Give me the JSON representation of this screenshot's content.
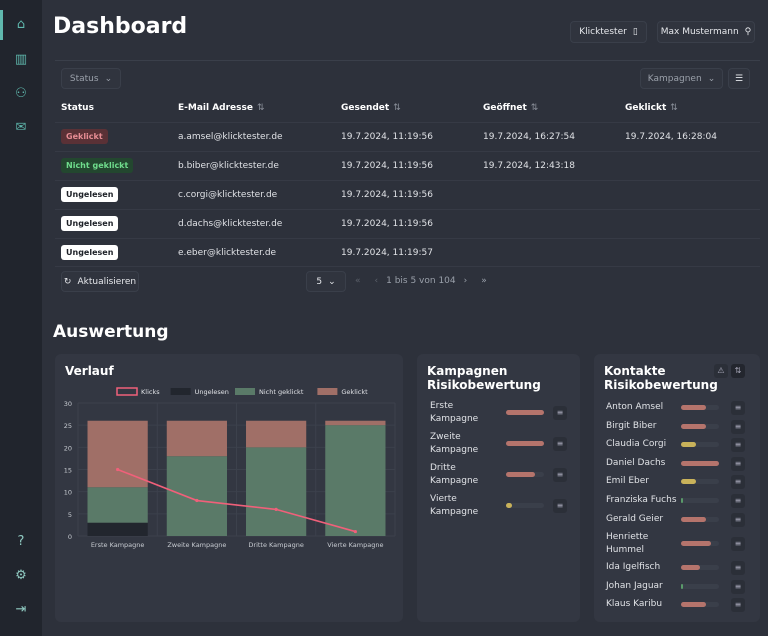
{
  "header": {
    "title": "Dashboard",
    "org_button": "Klicktester",
    "user_button": "Max Mustermann"
  },
  "sidebar": {
    "items": [
      "home-icon",
      "building-icon",
      "users-icon",
      "mail-icon"
    ],
    "bottom": [
      "help-icon",
      "settings-icon",
      "logout-icon"
    ]
  },
  "table": {
    "status_filter": "Status",
    "campaign_filter": "Kampagnen",
    "columns": [
      "Status",
      "E-Mail Adresse",
      "Gesendet",
      "Geöffnet",
      "Geklickt"
    ],
    "sort_icon": "⇅",
    "rows": [
      {
        "status": "Geklickt",
        "type": "geklickt",
        "email": "a.amsel@klicktester.de",
        "sent": "19.7.2024, 11:19:56",
        "opened": "19.7.2024, 16:27:54",
        "clicked": "19.7.2024, 16:28:04"
      },
      {
        "status": "Nicht geklickt",
        "type": "nicht",
        "email": "b.biber@klicktester.de",
        "sent": "19.7.2024, 11:19:56",
        "opened": "19.7.2024, 12:43:18",
        "clicked": ""
      },
      {
        "status": "Ungelesen",
        "type": "ungelesen",
        "email": "c.corgi@klicktester.de",
        "sent": "19.7.2024, 11:19:56",
        "opened": "",
        "clicked": ""
      },
      {
        "status": "Ungelesen",
        "type": "ungelesen",
        "email": "d.dachs@klicktester.de",
        "sent": "19.7.2024, 11:19:56",
        "opened": "",
        "clicked": ""
      },
      {
        "status": "Ungelesen",
        "type": "ungelesen",
        "email": "e.eber@klicktester.de",
        "sent": "19.7.2024, 11:19:57",
        "opened": "",
        "clicked": ""
      }
    ],
    "refresh": "Aktualisieren",
    "page_size": "5",
    "page_info": "1 bis 5 von 104"
  },
  "section_title": "Auswertung",
  "verlauf": {
    "title": "Verlauf"
  },
  "chart_data": {
    "type": "bar",
    "stacked": true,
    "categories": [
      "Erste Kampagne",
      "Zweite Kampagne",
      "Dritte Kampagne",
      "Vierte Kampagne"
    ],
    "ylim": [
      0,
      30
    ],
    "yticks": [
      0,
      5,
      10,
      15,
      20,
      25,
      30
    ],
    "legend": "top",
    "grid": true,
    "series": [
      {
        "name": "Klicks",
        "type": "line",
        "color": "#f0607a",
        "values": [
          15,
          8,
          6,
          1
        ]
      },
      {
        "name": "Ungelesen",
        "color": "#22262e",
        "values": [
          3,
          0,
          0,
          0
        ]
      },
      {
        "name": "Nicht geklickt",
        "color": "#5a7a68",
        "values": [
          8,
          18,
          20,
          25
        ]
      },
      {
        "name": "Geklickt",
        "color": "#a06f67",
        "values": [
          15,
          8,
          6,
          1
        ]
      }
    ]
  },
  "kampagnen": {
    "title_1": "Kampagnen",
    "title_2": "Risikobewertung",
    "items": [
      {
        "name_1": "Erste",
        "name_2": "Kampagne",
        "risk": 1.0,
        "color": "#b5746c"
      },
      {
        "name_1": "Zweite",
        "name_2": "Kampagne",
        "risk": 1.0,
        "color": "#b5746c"
      },
      {
        "name_1": "Dritte",
        "name_2": "Kampagne",
        "risk": 0.75,
        "color": "#b5746c"
      },
      {
        "name_1": "Vierte",
        "name_2": "Kampagne",
        "risk": 0.15,
        "color": "#c9b25a"
      }
    ]
  },
  "kontakte": {
    "title_1": "Kontakte",
    "title_2": "Risikobewertung",
    "items": [
      {
        "name": "Anton Amsel",
        "risk": 0.65,
        "color": "#b5746c"
      },
      {
        "name": "Birgit Biber",
        "risk": 0.65,
        "color": "#b5746c"
      },
      {
        "name": "Claudia Corgi",
        "risk": 0.4,
        "color": "#c9b25a"
      },
      {
        "name": "Daniel Dachs",
        "risk": 1.0,
        "color": "#b5746c"
      },
      {
        "name": "Emil Eber",
        "risk": 0.4,
        "color": "#c9b25a"
      },
      {
        "name": "Franziska Fuchs",
        "risk": 0.03,
        "color": "#5a9a6a"
      },
      {
        "name": "Gerald Geier",
        "risk": 0.65,
        "color": "#b5746c"
      },
      {
        "name": "Henriette Hummel",
        "risk": 0.8,
        "color": "#b5746c"
      },
      {
        "name": "Ida Igelfisch",
        "risk": 0.5,
        "color": "#b5746c"
      },
      {
        "name": "Johan Jaguar",
        "risk": 0.03,
        "color": "#5a9a6a"
      },
      {
        "name": "Klaus Karibu",
        "risk": 0.65,
        "color": "#b5746c"
      }
    ]
  }
}
